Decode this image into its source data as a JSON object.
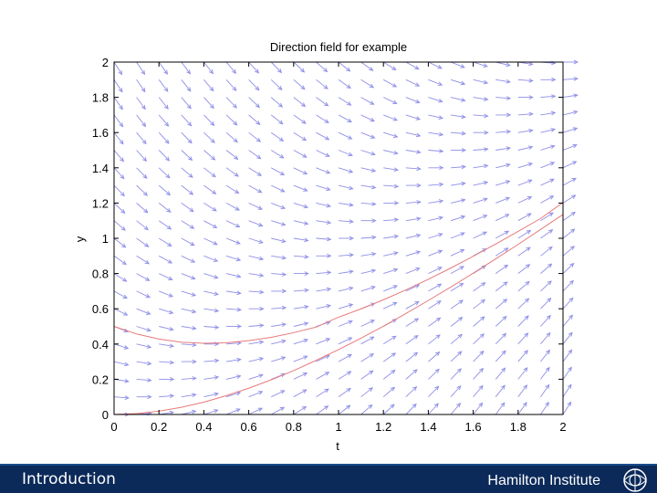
{
  "chart_data": {
    "type": "quiver",
    "title": "Direction field for example",
    "xlabel": "t",
    "ylabel": "y",
    "xlim": [
      0,
      2
    ],
    "ylim": [
      0,
      2
    ],
    "xticks": [
      "0",
      "0.2",
      "0.4",
      "0.6",
      "0.8",
      "1",
      "1.2",
      "1.4",
      "1.6",
      "1.8",
      "2"
    ],
    "yticks": [
      "0",
      "0.2",
      "0.4",
      "0.6",
      "0.8",
      "1",
      "1.2",
      "1.4",
      "1.6",
      "1.8",
      "2"
    ],
    "field": {
      "equation": "dy/dt = t - y",
      "t_range": [
        0,
        2
      ],
      "y_range": [
        0,
        2
      ],
      "step": 0.1
    },
    "solutions": [
      {
        "initial": [
          0,
          0.5
        ],
        "x": [
          0,
          0.1,
          0.2,
          0.3,
          0.4,
          0.5,
          0.6,
          0.7,
          0.8,
          0.9,
          1.0,
          1.1,
          1.2,
          1.3,
          1.4,
          1.5,
          1.6,
          1.7,
          1.8,
          1.9,
          2.0
        ],
        "y": [
          0.5,
          0.457,
          0.428,
          0.41,
          0.404,
          0.407,
          0.419,
          0.438,
          0.464,
          0.496,
          0.552,
          0.599,
          0.651,
          0.707,
          0.767,
          0.831,
          0.898,
          0.967,
          1.039,
          1.112,
          1.203
        ]
      },
      {
        "initial": [
          0,
          0
        ],
        "x": [
          0,
          0.1,
          0.2,
          0.3,
          0.4,
          0.5,
          0.6,
          0.7,
          0.8,
          0.9,
          1.0,
          1.1,
          1.2,
          1.3,
          1.4,
          1.5,
          1.6,
          1.7,
          1.8,
          1.9,
          2.0
        ],
        "y": [
          0,
          0.005,
          0.019,
          0.041,
          0.07,
          0.107,
          0.149,
          0.197,
          0.249,
          0.307,
          0.368,
          0.433,
          0.501,
          0.573,
          0.647,
          0.723,
          0.802,
          0.883,
          0.965,
          1.05,
          1.135
        ]
      }
    ],
    "colors": {
      "arrows": "#8f8fe8",
      "solutions": "#e87a7a",
      "axes": "#000000"
    },
    "grid": false
  },
  "footer": {
    "left_text": "Introduction",
    "right_text": "Hamilton Institute",
    "background": "#0b2a5a",
    "logo_icon": "hamilton-institute-logo-icon"
  }
}
